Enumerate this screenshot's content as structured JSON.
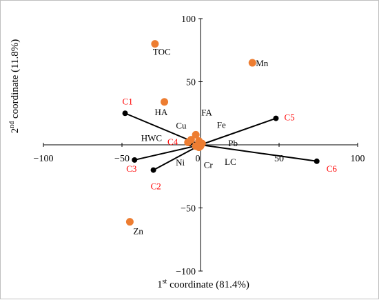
{
  "chart_data": {
    "type": "scatter",
    "title": "",
    "xlabel": {
      "base": "1",
      "sup": "st",
      "rest": " coordinate (81.4%)"
    },
    "ylabel": {
      "base": "2",
      "sup": "nd",
      "rest": " coordinate (11.8%)"
    },
    "xlim": [
      -100,
      100
    ],
    "ylim": [
      -100,
      100
    ],
    "x_ticks": [
      -100,
      -50,
      0,
      50,
      100
    ],
    "y_ticks": [
      -100,
      -50,
      0,
      50,
      100
    ],
    "x_tick_labels": [
      "−100",
      "−50",
      "0",
      "50",
      "100"
    ],
    "y_tick_labels": [
      "−100",
      "−50",
      "",
      "50",
      "100"
    ],
    "grid": false,
    "colors": {
      "variables": "#ED7D31",
      "samples": "#000000",
      "sample_labels": "#FF0000",
      "axes": "#000000",
      "variable_labels": "#000000"
    },
    "variables": [
      {
        "name": "TOC",
        "x": -29,
        "y": 80
      },
      {
        "name": "Mn",
        "x": 33,
        "y": 65
      },
      {
        "name": "HA",
        "x": -23,
        "y": 34
      },
      {
        "name": "FA",
        "x": -3,
        "y": 8
      },
      {
        "name": "Fe",
        "x": -1,
        "y": 3
      },
      {
        "name": "Cu",
        "x": -6,
        "y": 4
      },
      {
        "name": "HWC",
        "x": -8,
        "y": 2
      },
      {
        "name": "Pb",
        "x": 1,
        "y": 1
      },
      {
        "name": "LC",
        "x": 0,
        "y": -1
      },
      {
        "name": "Cr",
        "x": -1,
        "y": -2
      },
      {
        "name": "Ni",
        "x": -3,
        "y": -1
      },
      {
        "name": "Zn",
        "x": -45,
        "y": -61
      }
    ],
    "samples": [
      {
        "name": "C1",
        "x": -48,
        "y": 25
      },
      {
        "name": "C2",
        "x": -30,
        "y": -20
      },
      {
        "name": "C3",
        "x": -42,
        "y": -12
      },
      {
        "name": "C4",
        "x": -7,
        "y": 1
      },
      {
        "name": "C5",
        "x": 48,
        "y": 21
      },
      {
        "name": "C6",
        "x": 74,
        "y": -13
      }
    ]
  }
}
